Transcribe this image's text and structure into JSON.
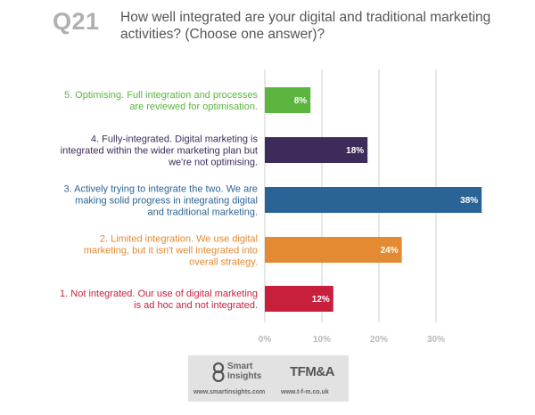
{
  "header": {
    "question_number": "Q21",
    "question_text": "How well integrated are your digital and traditional marketing activities? (Choose one answer)?"
  },
  "chart_data": {
    "type": "bar",
    "orientation": "horizontal",
    "title": "",
    "xlabel": "",
    "ylabel": "",
    "xlim": [
      0,
      38
    ],
    "ticks": [
      "0%",
      "10%",
      "20%",
      "30%"
    ],
    "tick_values": [
      0,
      10,
      20,
      30
    ],
    "grid": true,
    "categories": [
      {
        "label": [
          "5. Optimising. Full integration and processes",
          "are reviewed for optimisation."
        ],
        "value": 8,
        "value_label": "8%",
        "color": "#5cb53f"
      },
      {
        "label": [
          "4. Fully-integrated. Digital marketing is",
          "integrated within the wider marketing plan but",
          "we're not optimising."
        ],
        "value": 18,
        "value_label": "18%",
        "color": "#3d2b5a"
      },
      {
        "label": [
          "3. Actively trying to integrate the two. We are",
          "making solid progress in integrating digital",
          "and traditional marketing."
        ],
        "value": 38,
        "value_label": "38%",
        "color": "#2a6496"
      },
      {
        "label": [
          "2. Limited integration. We use digital",
          "marketing, but it isn't well integrated into",
          "overall strategy."
        ],
        "value": 24,
        "value_label": "24%",
        "color": "#e48a32"
      },
      {
        "label": [
          "1. Not integrated. Our use of digital marketing",
          "is ad hoc and not integrated."
        ],
        "value": 12,
        "value_label": "12%",
        "color": "#c8203c"
      }
    ]
  },
  "footer": {
    "smart_insights_name": "Smart Insights",
    "smart_insights_url": "www.smartinsights.com",
    "tfm_logo": "TFM&A",
    "tfm_url": "www.t-f-m.co.uk"
  }
}
